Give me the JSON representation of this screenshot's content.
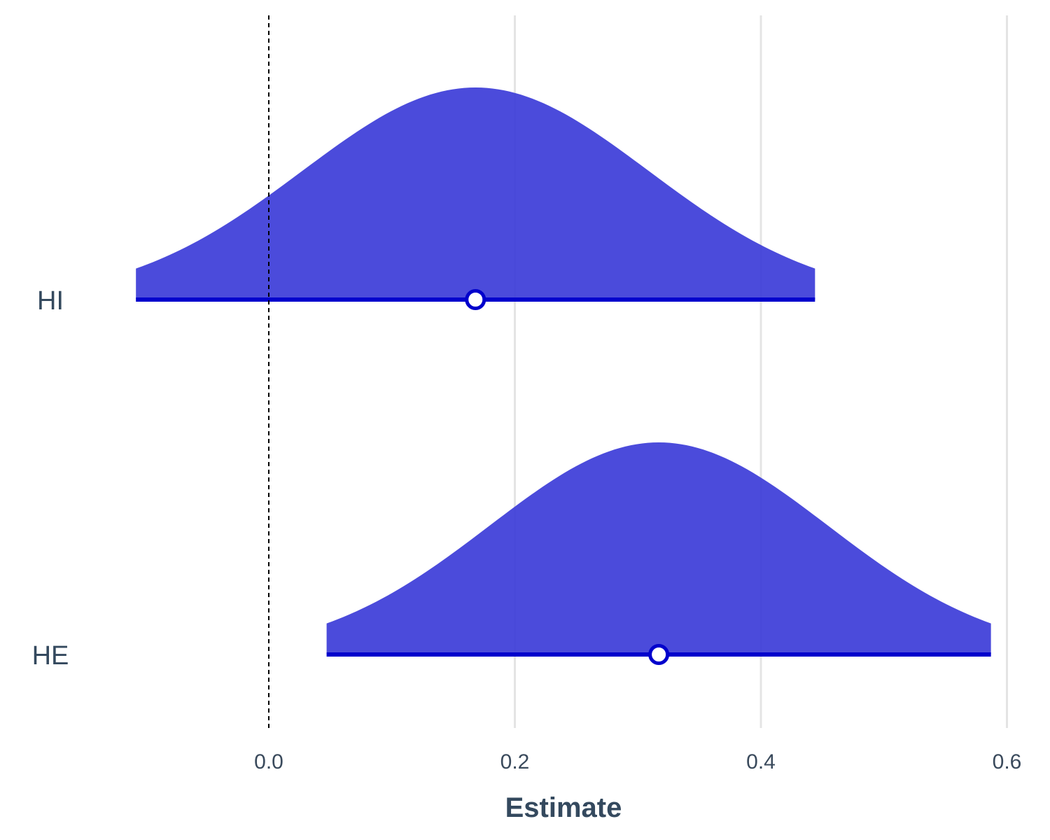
{
  "chart_data": {
    "type": "area",
    "xlabel": "Estimate",
    "ylabel": "",
    "title": "",
    "xlim": [
      -0.1,
      0.6
    ],
    "x_ticks": [
      "0.0",
      "0.2",
      "0.4",
      "0.6"
    ],
    "x_tick_values": [
      0.0,
      0.2,
      0.4,
      0.6
    ],
    "reference_line": 0,
    "grid": "vertical",
    "series": [
      {
        "name": "HI",
        "estimate": 0.168,
        "interval": [
          -0.108,
          0.444
        ],
        "fill_color": "#3c3cd8",
        "line_color": "#0000cc"
      },
      {
        "name": "HE",
        "estimate": 0.317,
        "interval": [
          0.047,
          0.587
        ],
        "fill_color": "#3c3cd8",
        "line_color": "#0000cc"
      }
    ]
  }
}
